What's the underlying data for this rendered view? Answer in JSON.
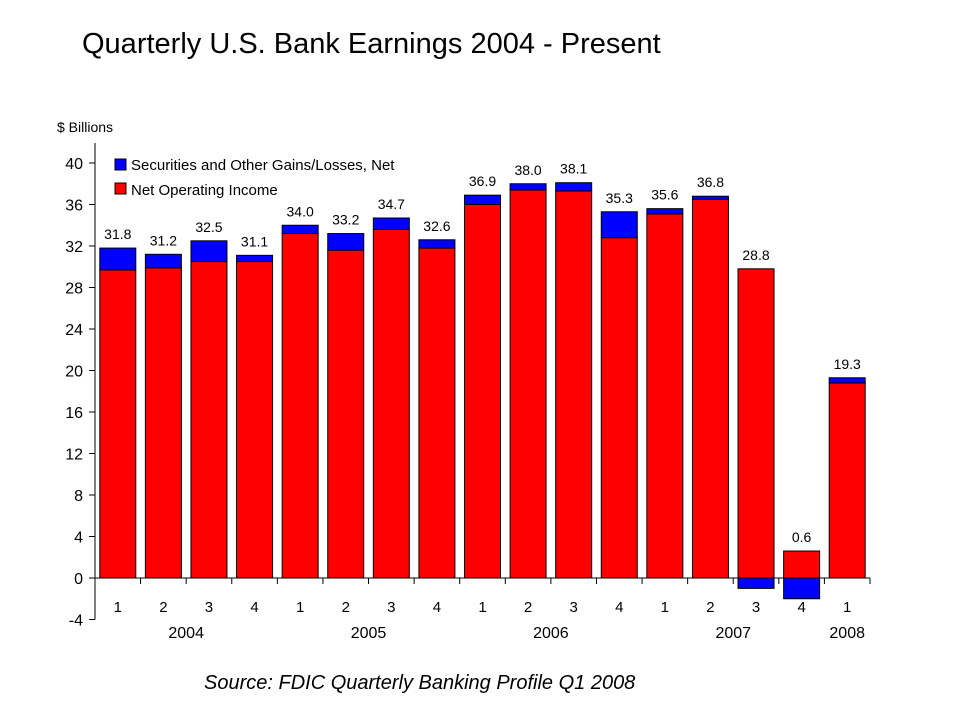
{
  "title": "Quarterly U.S. Bank Earnings 2004 - Present",
  "source": "Source:  FDIC Quarterly Banking Profile Q1 2008",
  "chart_data": {
    "type": "bar",
    "stacked": true,
    "ylabel": "$ Billions",
    "ylim": [
      -4,
      40
    ],
    "yticks": [
      -4,
      0,
      4,
      8,
      12,
      16,
      20,
      24,
      28,
      32,
      36,
      40
    ],
    "grid": false,
    "legend_position": "top-left",
    "categories": [
      "1",
      "2",
      "3",
      "4",
      "1",
      "2",
      "3",
      "4",
      "1",
      "2",
      "3",
      "4",
      "1",
      "2",
      "3",
      "4",
      "1"
    ],
    "year_groups": [
      {
        "label": "2004",
        "count": 4
      },
      {
        "label": "2005",
        "count": 4
      },
      {
        "label": "2006",
        "count": 4
      },
      {
        "label": "2007",
        "count": 4
      },
      {
        "label": "2008",
        "count": 1
      }
    ],
    "series": [
      {
        "name": "Net Operating Income",
        "color": "#ff0000",
        "values": [
          29.7,
          29.9,
          30.5,
          30.5,
          33.2,
          31.6,
          33.6,
          31.8,
          36.0,
          37.4,
          37.3,
          32.8,
          35.1,
          36.5,
          29.8,
          2.6,
          18.8
        ]
      },
      {
        "name": "Securities and Other Gains/Losses, Net",
        "color": "#0000ff",
        "values": [
          2.1,
          1.3,
          2.0,
          0.6,
          0.8,
          1.6,
          1.1,
          0.8,
          0.9,
          0.6,
          0.8,
          2.5,
          0.5,
          0.3,
          -1.0,
          -2.0,
          0.5
        ]
      }
    ],
    "totals": [
      "31.8",
      "31.2",
      "32.5",
      "31.1",
      "34.0",
      "33.2",
      "34.7",
      "32.6",
      "36.9",
      "38.0",
      "38.1",
      "35.3",
      "35.6",
      "36.8",
      "28.8",
      "0.6",
      "19.3"
    ],
    "legend_order": [
      "Securities and Other Gains/Losses, Net",
      "Net Operating Income"
    ]
  }
}
